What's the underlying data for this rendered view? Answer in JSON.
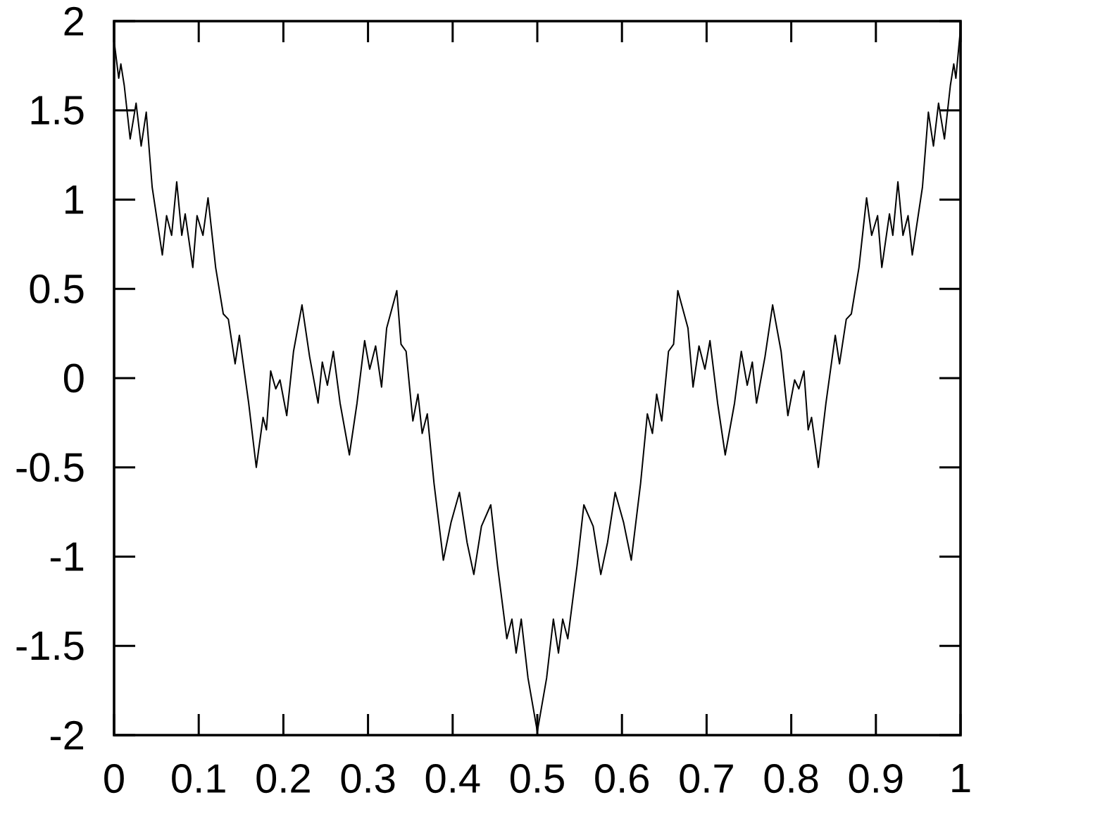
{
  "chart_data": {
    "type": "line",
    "x": [
      0,
      0.0055,
      0.008,
      0.012,
      0.019,
      0.026,
      0.032,
      0.038,
      0.045,
      0.057,
      0.062,
      0.068,
      0.074,
      0.08,
      0.084,
      0.093,
      0.098,
      0.105,
      0.111,
      0.12,
      0.129,
      0.135,
      0.143,
      0.148,
      0.159,
      0.168,
      0.176,
      0.18,
      0.185,
      0.191,
      0.196,
      0.204,
      0.212,
      0.222,
      0.231,
      0.241,
      0.246,
      0.252,
      0.259,
      0.267,
      0.278,
      0.287,
      0.296,
      0.302,
      0.309,
      0.316,
      0.322,
      0.334,
      0.339,
      0.345,
      0.353,
      0.359,
      0.364,
      0.37,
      0.378,
      0.389,
      0.398,
      0.408,
      0.417,
      0.425,
      0.434,
      0.445,
      0.453,
      0.464,
      0.47,
      0.475,
      0.481,
      0.489,
      0.5,
      0.511,
      0.519,
      0.525,
      0.53,
      0.536,
      0.547,
      0.555,
      0.566,
      0.575,
      0.583,
      0.592,
      0.602,
      0.611,
      0.622,
      0.63,
      0.636,
      0.641,
      0.647,
      0.655,
      0.661,
      0.666,
      0.678,
      0.684,
      0.691,
      0.698,
      0.704,
      0.713,
      0.722,
      0.733,
      0.741,
      0.748,
      0.754,
      0.759,
      0.769,
      0.778,
      0.788,
      0.796,
      0.804,
      0.809,
      0.815,
      0.82,
      0.824,
      0.832,
      0.841,
      0.852,
      0.857,
      0.865,
      0.871,
      0.88,
      0.889,
      0.895,
      0.902,
      0.907,
      0.916,
      0.92,
      0.926,
      0.932,
      0.938,
      0.943,
      0.955,
      0.962,
      0.968,
      0.974,
      0.981,
      0.988,
      0.992,
      0.9945,
      1
    ],
    "values": [
      1.89,
      1.68,
      1.76,
      1.64,
      1.34,
      1.54,
      1.3,
      1.49,
      1.07,
      0.69,
      0.91,
      0.8,
      1.1,
      0.8,
      0.92,
      0.62,
      0.91,
      0.8,
      1.01,
      0.62,
      0.36,
      0.33,
      0.08,
      0.24,
      -0.14,
      -0.5,
      -0.22,
      -0.29,
      0.04,
      -0.06,
      -0.01,
      -0.21,
      0.15,
      0.41,
      0.12,
      -0.14,
      0.09,
      -0.04,
      0.15,
      -0.14,
      -0.43,
      -0.14,
      0.21,
      0.05,
      0.18,
      -0.05,
      0.28,
      0.49,
      0.19,
      0.15,
      -0.24,
      -0.09,
      -0.31,
      -0.2,
      -0.59,
      -1.02,
      -0.81,
      -0.64,
      -0.92,
      -1.1,
      -0.83,
      -0.71,
      -1.05,
      -1.46,
      -1.35,
      -1.54,
      -1.35,
      -1.68,
      -1.98,
      -1.68,
      -1.35,
      -1.54,
      -1.35,
      -1.46,
      -1.05,
      -0.71,
      -0.83,
      -1.1,
      -0.92,
      -0.64,
      -0.81,
      -1.02,
      -0.59,
      -0.2,
      -0.31,
      -0.09,
      -0.24,
      0.15,
      0.19,
      0.49,
      0.28,
      -0.05,
      0.18,
      0.05,
      0.21,
      -0.14,
      -0.43,
      -0.14,
      0.15,
      -0.04,
      0.09,
      -0.14,
      0.12,
      0.41,
      0.15,
      -0.21,
      -0.01,
      -0.06,
      0.04,
      -0.29,
      -0.22,
      -0.5,
      -0.14,
      0.24,
      0.08,
      0.33,
      0.36,
      0.62,
      1.01,
      0.8,
      0.91,
      0.62,
      0.92,
      0.8,
      1.1,
      0.8,
      0.91,
      0.69,
      1.07,
      1.49,
      1.3,
      1.54,
      1.34,
      1.64,
      1.76,
      1.68,
      1.96
    ],
    "color": "#000000",
    "xlim": [
      0,
      1
    ],
    "ylim": [
      -2,
      2
    ],
    "xticks": [
      0,
      0.1,
      0.2,
      0.3,
      0.4,
      0.5,
      0.6,
      0.7,
      0.8,
      0.9,
      1
    ],
    "yticks": [
      -2,
      -1.5,
      -1,
      -0.5,
      0,
      0.5,
      1,
      1.5,
      2
    ]
  }
}
